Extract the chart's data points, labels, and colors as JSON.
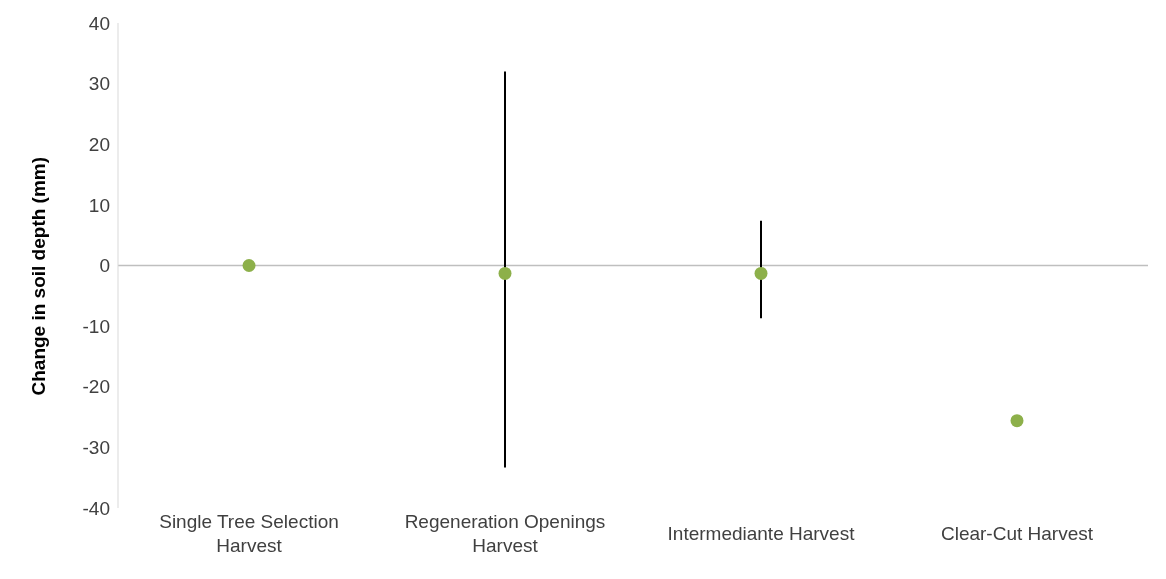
{
  "chart_data": {
    "type": "scatter",
    "ylabel": "Change in soil depth (mm)",
    "categories": [
      "Single Tree Selection Harvest",
      "Regeneration Openings Harvest",
      "Intermediante Harvest",
      "Clear-Cut Harvest"
    ],
    "series": [
      {
        "color": "#8db04a",
        "values": [
          0,
          -1.3,
          -1.3,
          -25.6
        ],
        "errors": [
          null,
          [
            -33.3,
            32.0
          ],
          [
            -8.7,
            7.4
          ],
          null
        ]
      }
    ],
    "ylim": [
      -40,
      40
    ],
    "yticks": [
      -40,
      -30,
      -20,
      -10,
      0,
      10,
      20,
      30,
      40
    ],
    "ref_lines": [
      {
        "axis": "y",
        "value": 0,
        "color": "#bfbfbf"
      }
    ],
    "grid": false,
    "marker": "circle"
  }
}
